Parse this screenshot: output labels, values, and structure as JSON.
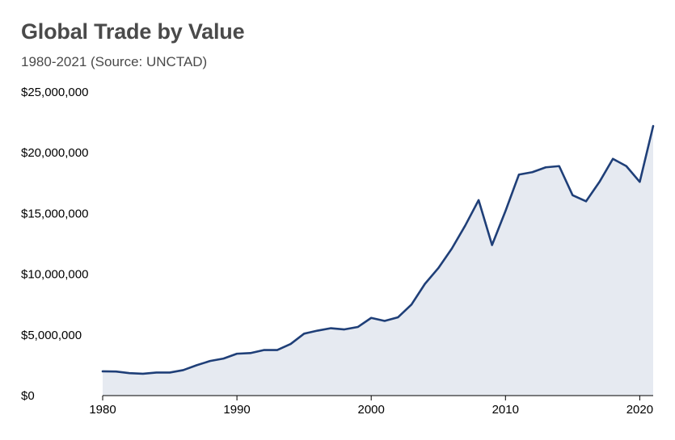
{
  "title": "Global Trade by Value",
  "subtitle": "1980-2021 (Source: UNCTAD)",
  "colors": {
    "line": "#1f3f78",
    "area": "#e6eaf1",
    "axis": "#000000",
    "title": "#4a4a4a"
  },
  "chart_data": {
    "type": "area",
    "title": "Global Trade by Value",
    "subtitle": "1980-2021 (Source: UNCTAD)",
    "xlabel": "",
    "ylabel": "",
    "xlim": [
      1980,
      2021
    ],
    "ylim": [
      0,
      25000000
    ],
    "grid": false,
    "x_ticks": [
      1980,
      1990,
      2000,
      2010,
      2020
    ],
    "x_tick_labels": [
      "1980",
      "1990",
      "2000",
      "2010",
      "2020"
    ],
    "y_ticks": [
      0,
      5000000,
      10000000,
      15000000,
      20000000,
      25000000
    ],
    "y_tick_labels": [
      "$0",
      "$5,000,000",
      "$10,000,000",
      "$15,000,000",
      "$20,000,000",
      "$25,000,000"
    ],
    "x": [
      1980,
      1981,
      1982,
      1983,
      1984,
      1985,
      1986,
      1987,
      1988,
      1989,
      1990,
      1991,
      1992,
      1993,
      1994,
      1995,
      1996,
      1997,
      1998,
      1999,
      2000,
      2001,
      2002,
      2003,
      2004,
      2005,
      2006,
      2007,
      2008,
      2009,
      2010,
      2011,
      2012,
      2013,
      2014,
      2015,
      2016,
      2017,
      2018,
      2019,
      2020,
      2021
    ],
    "values": [
      2000000,
      1980000,
      1850000,
      1800000,
      1900000,
      1900000,
      2100000,
      2500000,
      2850000,
      3050000,
      3450000,
      3500000,
      3750000,
      3750000,
      4250000,
      5100000,
      5350000,
      5550000,
      5450000,
      5650000,
      6400000,
      6150000,
      6450000,
      7500000,
      9200000,
      10500000,
      12100000,
      14000000,
      16100000,
      12400000,
      15200000,
      18200000,
      18400000,
      18800000,
      18900000,
      16500000,
      16000000,
      17600000,
      19500000,
      18900000,
      17600000,
      22200000
    ]
  }
}
